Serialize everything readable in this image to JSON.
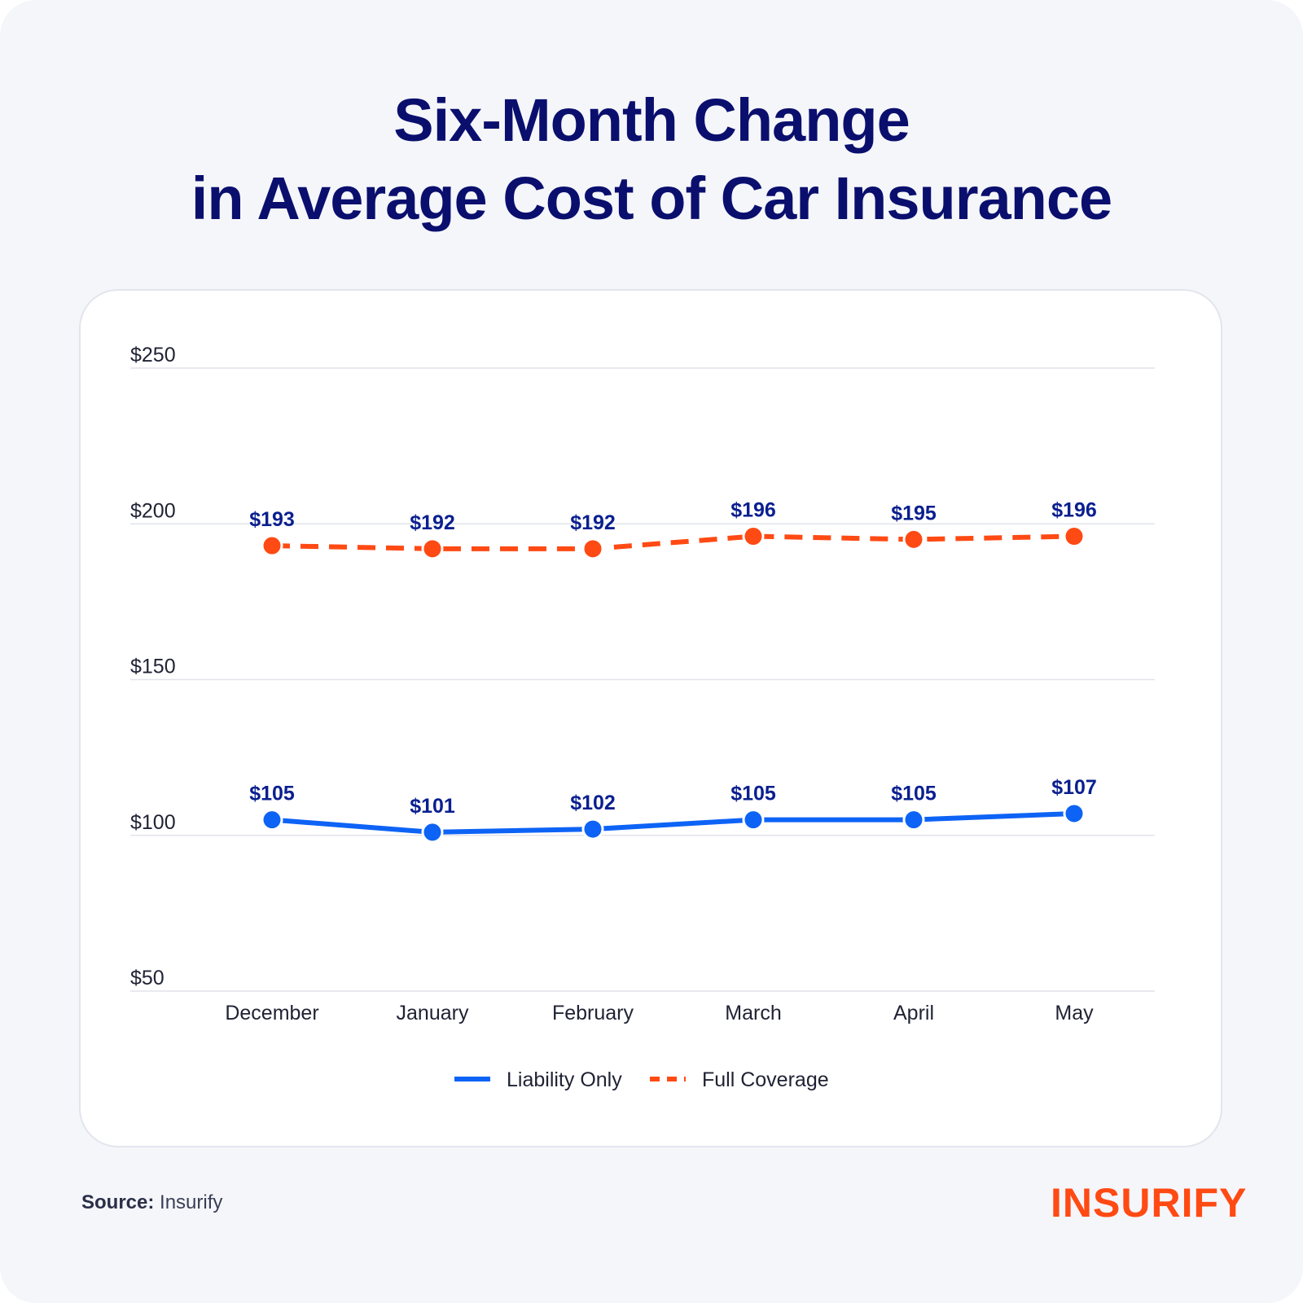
{
  "title": {
    "line1": "Six-Month Change",
    "line2": "in Average Cost of Car Insurance"
  },
  "chart_data": {
    "type": "line",
    "title": "Six-Month Change in Average Cost of Car Insurance",
    "xlabel": "",
    "ylabel": "",
    "categories": [
      "December",
      "January",
      "February",
      "March",
      "April",
      "May"
    ],
    "ylim": [
      50,
      250
    ],
    "yticks": [
      50,
      100,
      150,
      200,
      250
    ],
    "ytick_labels": [
      "$50",
      "$100",
      "$150",
      "$200",
      "$250"
    ],
    "grid": "horizontal",
    "legend_position": "bottom-center",
    "series": [
      {
        "name": "Liability Only",
        "values": [
          105,
          101,
          102,
          105,
          105,
          107
        ],
        "labels": [
          "$105",
          "$101",
          "$102",
          "$105",
          "$105",
          "$107"
        ],
        "color": "#0d63f5",
        "line_style": "solid"
      },
      {
        "name": "Full Coverage",
        "values": [
          193,
          192,
          192,
          196,
          195,
          196
        ],
        "labels": [
          "$193",
          "$192",
          "$192",
          "$196",
          "$195",
          "$196"
        ],
        "color": "#ff4a14",
        "line_style": "dashed"
      }
    ]
  },
  "colors": {
    "title": "#0a0f6e",
    "label": "#0a1f8f",
    "grid": "#e2e4ea",
    "axis_text": "#1f2233"
  },
  "footer": {
    "source_label": "Source:",
    "source_value": "Insurify",
    "brand": "INSURIFY"
  }
}
